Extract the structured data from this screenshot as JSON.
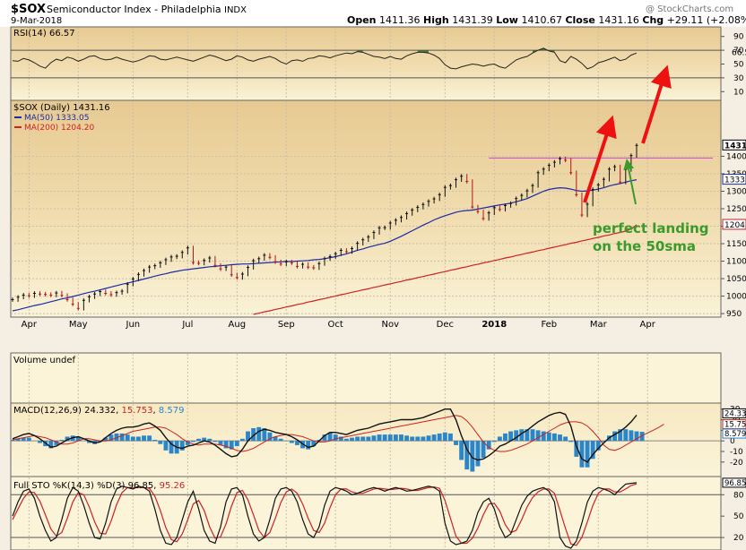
{
  "header": {
    "symbol": "$SOX",
    "name": "Semiconductor Index - Philadelphia",
    "exchange": "INDX",
    "date": "9-Mar-2018",
    "watermark": "@ StockCharts.com",
    "open_label": "Open",
    "open": "1411.36",
    "high_label": "High",
    "high": "1431.39",
    "low_label": "Low",
    "low": "1410.67",
    "close_label": "Close",
    "close": "1431.16",
    "chg_label": "Chg",
    "chg": "+29.11 (+2.08%)"
  },
  "colors": {
    "panel_bg": "#fbf4d9",
    "gradient_top": "#e6c892",
    "price_bar": "#111111",
    "ma50": "#1a2aa8",
    "ma200": "#cc2222",
    "arrow": "#ee1111",
    "green_arrow": "#3a9a2a",
    "annotation": "#3a9a2a",
    "hline": "#cc44cc",
    "macd_hist": "#2a86c8"
  },
  "annotation": {
    "line1": "perfect landing",
    "line2": "on the 50sma"
  },
  "chart_data": [
    {
      "type": "line",
      "panel": "rsi",
      "title": "RSI(14) 66.57",
      "current_value": 66.57,
      "ylim": [
        0,
        100
      ],
      "y_ticks": [
        "90",
        "70",
        "50",
        "30",
        "10"
      ],
      "levels": [
        30,
        70
      ],
      "values": [
        55,
        54,
        58,
        56,
        52,
        47,
        44,
        52,
        57,
        55,
        60,
        58,
        54,
        57,
        61,
        62,
        58,
        56,
        57,
        60,
        57,
        55,
        53,
        55,
        58,
        62,
        61,
        57,
        56,
        58,
        60,
        58,
        56,
        54,
        57,
        60,
        63,
        61,
        58,
        55,
        57,
        62,
        60,
        56,
        54,
        57,
        59,
        61,
        58,
        53,
        50,
        55,
        56,
        54,
        58,
        59,
        62,
        61,
        59,
        62,
        64,
        66,
        65,
        68,
        67,
        64,
        61,
        60,
        58,
        61,
        58,
        57,
        62,
        65,
        67,
        67,
        66,
        63,
        58,
        49,
        44,
        43,
        46,
        48,
        50,
        49,
        47,
        49,
        50,
        46,
        44,
        50,
        56,
        59,
        61,
        66,
        70,
        73,
        69,
        67,
        55,
        52,
        61,
        57,
        51,
        43,
        46,
        52,
        54,
        57,
        60,
        55,
        57,
        63,
        66
      ]
    },
    {
      "type": "candlestick",
      "panel": "price",
      "title": "$SOX (Daily) 1431.16",
      "ylim": [
        940,
        1560
      ],
      "y_ticks": [
        "1400",
        "1350",
        "1300",
        "1250",
        "1200",
        "1150",
        "1100",
        "1050",
        "1000",
        "950"
      ],
      "y_labels_right": [
        "1431.",
        "1333.",
        "1204."
      ],
      "x_ticks": [
        "Apr",
        "May",
        "Jun",
        "Jul",
        "Aug",
        "Sep",
        "Oct",
        "Nov",
        "Dec",
        "2018",
        "Feb",
        "Mar",
        "Apr"
      ],
      "horizontal_line": 1395,
      "close": [
        990,
        997,
        1003,
        1001,
        1008,
        1006,
        1005,
        1003,
        1009,
        1002,
        990,
        977,
        965,
        988,
        998,
        1006,
        1013,
        1008,
        1004,
        1010,
        1014,
        1034,
        1049,
        1062,
        1073,
        1083,
        1087,
        1095,
        1104,
        1112,
        1114,
        1125,
        1138,
        1096,
        1094,
        1102,
        1109,
        1088,
        1078,
        1083,
        1061,
        1053,
        1063,
        1082,
        1101,
        1107,
        1117,
        1111,
        1098,
        1092,
        1098,
        1095,
        1085,
        1091,
        1083,
        1081,
        1093,
        1107,
        1113,
        1121,
        1131,
        1127,
        1136,
        1151,
        1161,
        1169,
        1182,
        1195,
        1196,
        1209,
        1217,
        1225,
        1236,
        1246,
        1254,
        1262,
        1271,
        1278,
        1290,
        1311,
        1316,
        1333,
        1343,
        1328,
        1255,
        1242,
        1222,
        1238,
        1253,
        1248,
        1259,
        1265,
        1279,
        1288,
        1301,
        1316,
        1353,
        1363,
        1374,
        1383,
        1393,
        1389,
        1353,
        1290,
        1232,
        1263,
        1305,
        1318,
        1334,
        1363,
        1370,
        1326,
        1362,
        1402,
        1431
      ],
      "series": [
        {
          "name": "MA(50) 1333.05",
          "values": [
            958,
            961,
            965,
            969,
            973,
            976,
            980,
            984,
            988,
            992,
            995,
            999,
            1003,
            1007,
            1011,
            1014,
            1018,
            1022,
            1026,
            1030,
            1034,
            1037,
            1041,
            1045,
            1049,
            1053,
            1057,
            1061,
            1064,
            1068,
            1071,
            1074,
            1076,
            1078,
            1080,
            1082,
            1084,
            1085,
            1087,
            1088,
            1090,
            1091,
            1092,
            1092,
            1093,
            1094,
            1095,
            1096,
            1097,
            1098,
            1099,
            1099,
            1100,
            1101,
            1102,
            1104,
            1105,
            1107,
            1110,
            1113,
            1117,
            1121,
            1126,
            1131,
            1135,
            1140,
            1144,
            1148,
            1151,
            1157,
            1164,
            1171,
            1179,
            1187,
            1195,
            1203,
            1210,
            1218,
            1224,
            1230,
            1235,
            1240,
            1243,
            1245,
            1246,
            1249,
            1252,
            1255,
            1258,
            1261,
            1263,
            1266,
            1270,
            1274,
            1279,
            1286,
            1293,
            1300,
            1305,
            1308,
            1310,
            1309,
            1306,
            1302,
            1300,
            1301,
            1303,
            1306,
            1310,
            1315,
            1319,
            1322,
            1326,
            1330,
            1333
          ]
        },
        {
          "name": "MA(200) 1204.20",
          "values": [
            null,
            null,
            null,
            null,
            null,
            null,
            null,
            null,
            null,
            null,
            null,
            null,
            null,
            null,
            null,
            null,
            null,
            null,
            null,
            null,
            null,
            null,
            null,
            null,
            null,
            null,
            null,
            null,
            null,
            null,
            null,
            null,
            null,
            null,
            null,
            null,
            null,
            null,
            null,
            null,
            null,
            null,
            null,
            null,
            948,
            951,
            955,
            958,
            962,
            965,
            969,
            972,
            976,
            979,
            983,
            986,
            990,
            993,
            997,
            1000,
            1004,
            1007,
            1011,
            1014,
            1018,
            1021,
            1025,
            1028,
            1032,
            1035,
            1039,
            1042,
            1046,
            1049,
            1053,
            1056,
            1060,
            1063,
            1067,
            1070,
            1074,
            1077,
            1081,
            1084,
            1088,
            1091,
            1095,
            1098,
            1102,
            1105,
            1109,
            1112,
            1116,
            1119,
            1123,
            1126,
            1130,
            1133,
            1137,
            1140,
            1144,
            1147,
            1151,
            1154,
            1158,
            1161,
            1165,
            1168,
            1172,
            1175,
            1179,
            1182,
            1186,
            1192,
            1204
          ]
        }
      ]
    },
    {
      "type": "bar",
      "panel": "volume",
      "title": "Volume undef",
      "values": []
    },
    {
      "type": "line",
      "panel": "macd",
      "title": "MACD(12,26,9)",
      "ylim": [
        -32,
        34
      ],
      "y_ticks": [
        "30",
        "20",
        "10",
        "0",
        "-10",
        "-20"
      ],
      "y_labels_right": [
        "24.33",
        "15.75",
        "8.579"
      ],
      "series": [
        {
          "name": "24.332",
          "values": [
            2,
            4,
            6,
            7,
            5,
            2,
            -2,
            -6,
            -5,
            -2,
            1,
            3,
            4,
            2,
            0,
            -2,
            -1,
            3,
            7,
            10,
            12,
            13,
            13,
            14,
            16,
            17,
            14,
            10,
            3,
            -3,
            -6,
            -7,
            -5,
            -4,
            -2,
            0,
            -1,
            -4,
            -8,
            -12,
            -15,
            -14,
            -8,
            0,
            5,
            9,
            11,
            10,
            8,
            7,
            6,
            4,
            1,
            -3,
            -6,
            -5,
            0,
            5,
            8,
            8,
            7,
            6,
            8,
            10,
            11,
            12,
            14,
            16,
            17,
            18,
            19,
            20,
            20,
            20,
            21,
            22,
            24,
            26,
            28,
            30,
            30,
            20,
            5,
            -8,
            -16,
            -18,
            -17,
            -14,
            -10,
            -5,
            -3,
            0,
            3,
            7,
            10,
            14,
            18,
            21,
            24,
            26,
            27,
            25,
            14,
            -5,
            -17,
            -20,
            -13,
            -7,
            -2,
            3,
            6,
            9,
            13,
            18,
            24.332
          ]
        },
        {
          "name": "15.753",
          "values": [
            1,
            2,
            3,
            4,
            5,
            4,
            3,
            1,
            -1,
            -3,
            -3,
            -2,
            0,
            2,
            2,
            1,
            0,
            0,
            1,
            3,
            5,
            7,
            9,
            10,
            11,
            12,
            13,
            13,
            12,
            9,
            6,
            2,
            -1,
            -3,
            -4,
            -3,
            -3,
            -3,
            -4,
            -5,
            -7,
            -9,
            -10,
            -9,
            -7,
            -4,
            -1,
            2,
            4,
            5,
            6,
            6,
            5,
            4,
            2,
            0,
            -1,
            -1,
            0,
            2,
            3,
            4,
            5,
            6,
            7,
            8,
            9,
            10,
            11,
            12,
            13,
            14,
            15,
            16,
            17,
            18,
            19,
            20,
            21,
            22,
            23,
            24,
            23,
            19,
            13,
            6,
            -1,
            -6,
            -9,
            -10,
            -10,
            -9,
            -7,
            -5,
            -3,
            0,
            3,
            6,
            9,
            12,
            15,
            17,
            18,
            18,
            17,
            14,
            9,
            3,
            -4,
            -8,
            -9,
            -7,
            -4,
            -1,
            2,
            5,
            7.5,
            10,
            12.6,
            15.753
          ]
        }
      ],
      "histogram": {
        "name": "8.579",
        "values": [
          1,
          2,
          3,
          3,
          0,
          -2,
          -5,
          -7,
          -4,
          1,
          4,
          5,
          4,
          0,
          -2,
          -3,
          -1,
          3,
          6,
          7,
          7,
          6,
          4,
          4,
          5,
          5,
          1,
          -3,
          -9,
          -12,
          -12,
          -9,
          -4,
          -1,
          2,
          3,
          2,
          -1,
          -4,
          -7,
          -8,
          -5,
          2,
          9,
          12,
          13,
          12,
          8,
          4,
          2,
          0,
          -2,
          -4,
          -7,
          -8,
          -5,
          1,
          6,
          8,
          6,
          4,
          2,
          3,
          4,
          4,
          4,
          5,
          6,
          6,
          6,
          6,
          6,
          5,
          4,
          4,
          4,
          5,
          6,
          7,
          8,
          7,
          -4,
          -18,
          -27,
          -29,
          -24,
          -16,
          -8,
          -1,
          4,
          7,
          9,
          10,
          11,
          11,
          11,
          10,
          9,
          8,
          7,
          6,
          4,
          -1,
          -15,
          -25,
          -25,
          -17,
          -9,
          -1,
          5,
          9,
          11,
          11,
          10,
          9,
          8.579
        ]
      }
    },
    {
      "type": "line",
      "panel": "stochastic",
      "title": "Full STO %K(14,3) %D(3)",
      "ylim": [
        5,
        103
      ],
      "y_ticks": [
        "80",
        "50",
        "20"
      ],
      "y_labels_right": [
        "96.85"
      ],
      "series": [
        {
          "name": "96.85",
          "values": [
            50,
            70,
            85,
            88,
            75,
            50,
            30,
            15,
            20,
            45,
            75,
            90,
            85,
            65,
            40,
            20,
            18,
            40,
            70,
            88,
            92,
            90,
            88,
            92,
            90,
            85,
            60,
            30,
            12,
            10,
            20,
            45,
            70,
            85,
            60,
            30,
            15,
            12,
            35,
            70,
            88,
            90,
            80,
            50,
            25,
            15,
            20,
            45,
            75,
            88,
            90,
            85,
            70,
            45,
            25,
            20,
            35,
            65,
            85,
            90,
            88,
            85,
            80,
            82,
            85,
            88,
            90,
            88,
            85,
            88,
            90,
            88,
            85,
            86,
            88,
            90,
            92,
            90,
            85,
            40,
            15,
            10,
            12,
            15,
            30,
            55,
            70,
            75,
            60,
            35,
            20,
            25,
            45,
            65,
            78,
            85,
            88,
            90,
            85,
            70,
            20,
            8,
            5,
            15,
            40,
            70,
            85,
            90,
            88,
            85,
            80,
            88,
            95,
            96,
            96.85
          ]
        },
        {
          "name": "95.26",
          "values": [
            45,
            60,
            75,
            84,
            83,
            71,
            52,
            32,
            22,
            27,
            47,
            70,
            83,
            80,
            63,
            42,
            26,
            25,
            43,
            66,
            83,
            90,
            90,
            90,
            90,
            89,
            78,
            58,
            34,
            17,
            14,
            25,
            45,
            67,
            72,
            58,
            35,
            19,
            21,
            39,
            64,
            83,
            86,
            73,
            52,
            30,
            20,
            27,
            47,
            69,
            84,
            88,
            82,
            67,
            47,
            30,
            27,
            40,
            62,
            80,
            88,
            88,
            84,
            82,
            82,
            85,
            88,
            89,
            88,
            87,
            88,
            89,
            88,
            86,
            86,
            88,
            90,
            91,
            89,
            72,
            47,
            22,
            12,
            12,
            19,
            33,
            52,
            67,
            68,
            57,
            38,
            27,
            30,
            45,
            63,
            76,
            84,
            88,
            88,
            82,
            58,
            33,
            11,
            9,
            20,
            42,
            65,
            82,
            88,
            88,
            84,
            84,
            88,
            93,
            95.26
          ]
        }
      ]
    }
  ]
}
